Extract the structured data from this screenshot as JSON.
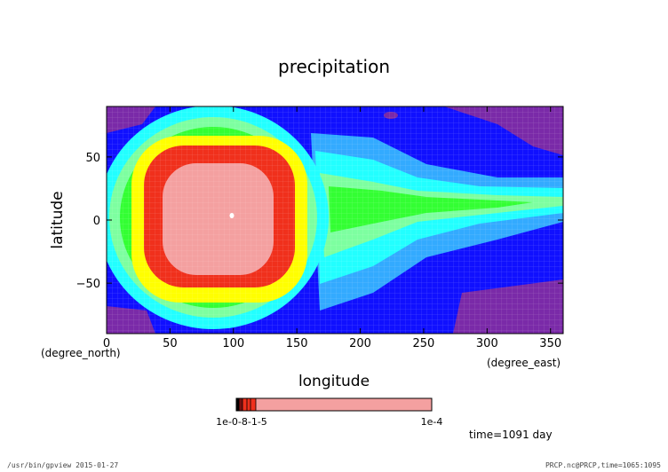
{
  "chart_data": {
    "type": "heatmap",
    "title": "precipitation",
    "xlabel": "longitude",
    "ylabel": "latitude",
    "x_unit": "(degree_east)",
    "y_unit": "(degree_north)",
    "xlim": [
      0,
      360
    ],
    "ylim": [
      -90,
      90
    ],
    "x_ticks": [
      "0",
      "50",
      "100",
      "150",
      "200",
      "250",
      "300",
      "350"
    ],
    "y_ticks": [
      "50",
      "0",
      "−50"
    ],
    "x_tick_values": [
      0,
      50,
      100,
      150,
      200,
      250,
      300,
      350
    ],
    "y_tick_values": [
      50,
      0,
      -50
    ],
    "colorbar": {
      "label_left": "1e-0-8-1-5",
      "label_right": "1e-4"
    },
    "time_label": "time=1091 day",
    "colors": {
      "pink": "#f4a0a0",
      "red": "#f0301c",
      "yellow": "#ffff00",
      "green": "#33ff33",
      "lightgreen": "#7dffa0",
      "cyan": "#22ffff",
      "lightblue": "#33aaff",
      "blue": "#1010ff",
      "purple": "#7a2aa8"
    }
  },
  "footer": {
    "left": "/usr/bin/gpview  2015-01-27",
    "right": "PRCP.nc@PRCP,time=1065:1095"
  }
}
